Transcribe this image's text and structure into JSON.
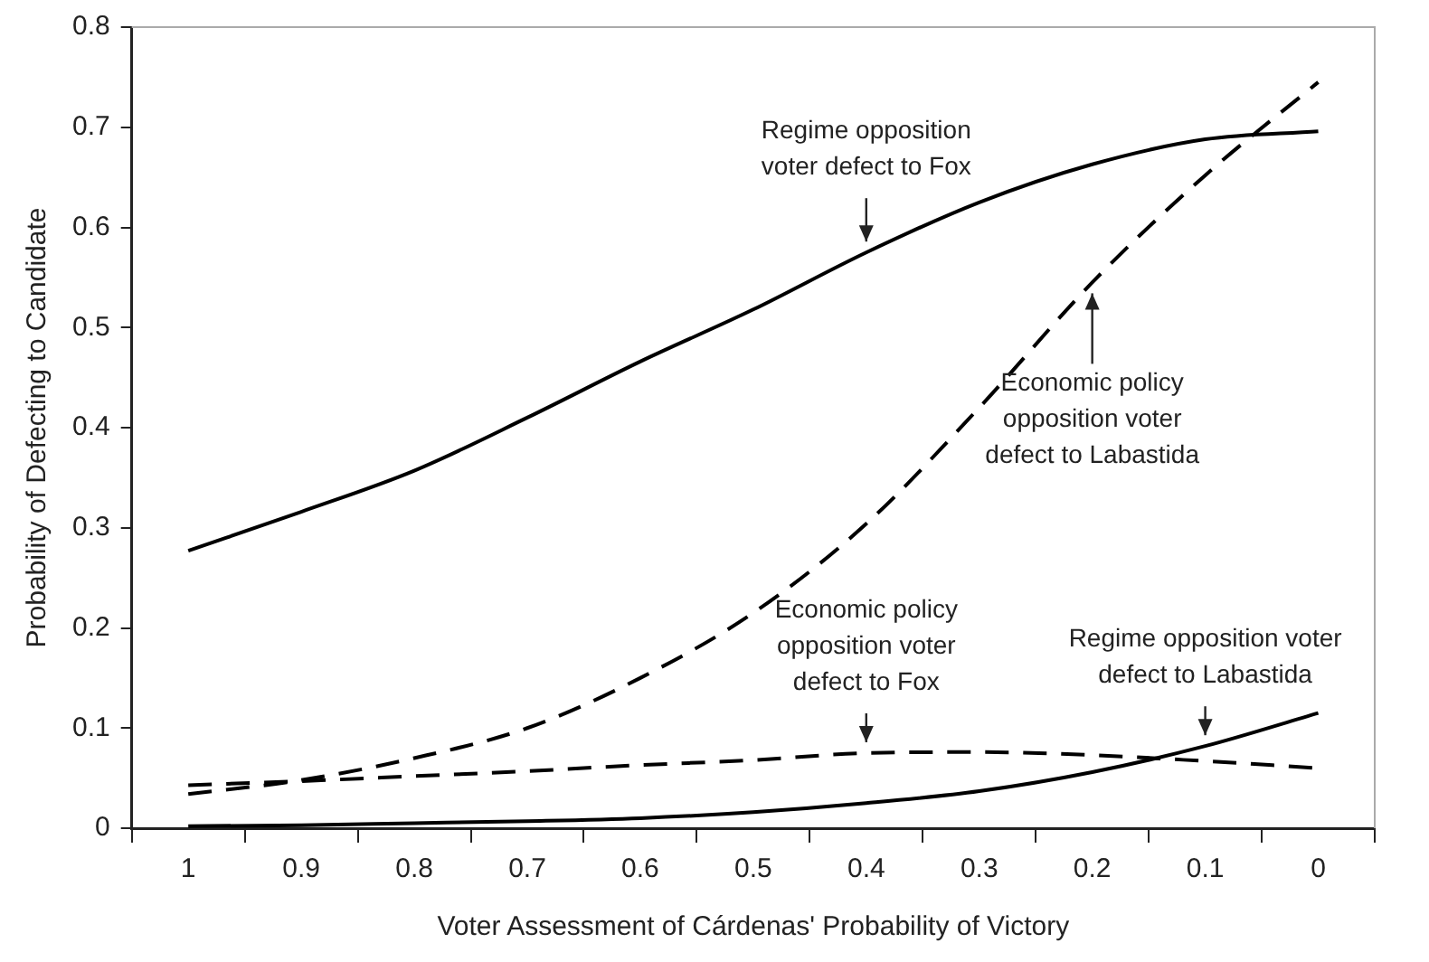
{
  "chart_data": {
    "type": "line",
    "xlabel": "Voter Assessment of Cárdenas' Probability of Victory",
    "ylabel": "Probability of Defecting to Candidate",
    "categories": [
      "1",
      "0.9",
      "0.8",
      "0.7",
      "0.6",
      "0.5",
      "0.4",
      "0.3",
      "0.2",
      "0.1",
      "0"
    ],
    "series": [
      {
        "color": "#000000",
        "line_style": "solid",
        "values": [
          0.277,
          0.316,
          0.357,
          0.41,
          0.466,
          0.518,
          0.575,
          0.625,
          0.663,
          0.688,
          0.696
        ]
      },
      {
        "color": "#000000",
        "line_style": "dashed",
        "values": [
          0.034,
          0.048,
          0.07,
          0.1,
          0.15,
          0.215,
          0.304,
          0.42,
          0.545,
          0.652,
          0.745
        ]
      },
      {
        "color": "#000000",
        "line_style": "dashed",
        "values": [
          0.043,
          0.047,
          0.052,
          0.057,
          0.063,
          0.068,
          0.075,
          0.076,
          0.073,
          0.067,
          0.06
        ]
      },
      {
        "color": "#000000",
        "line_style": "solid",
        "values": [
          0.002,
          0.003,
          0.005,
          0.007,
          0.01,
          0.016,
          0.025,
          0.037,
          0.056,
          0.082,
          0.115
        ]
      }
    ],
    "ylim": [
      0,
      0.8
    ],
    "yticks": [
      0,
      0.1,
      0.2,
      0.3,
      0.4,
      0.5,
      0.6,
      0.7,
      0.8
    ],
    "grid": false,
    "legend": false,
    "marker": "none",
    "annotations": [
      {
        "text": "Regime opposition\nvoter defect to Fox",
        "x": "0.4",
        "y": 0.575
      },
      {
        "text": "Economic policy\nopposition voter\ndefect to Labastida",
        "x": "0.2",
        "y": 0.545
      },
      {
        "text": "Economic policy\nopposition voter\ndefect to Fox",
        "x": "0.4",
        "y": 0.075
      },
      {
        "text": "Regime opposition voter\ndefect to Labastida",
        "x": "0.1",
        "y": 0.082
      }
    ]
  }
}
